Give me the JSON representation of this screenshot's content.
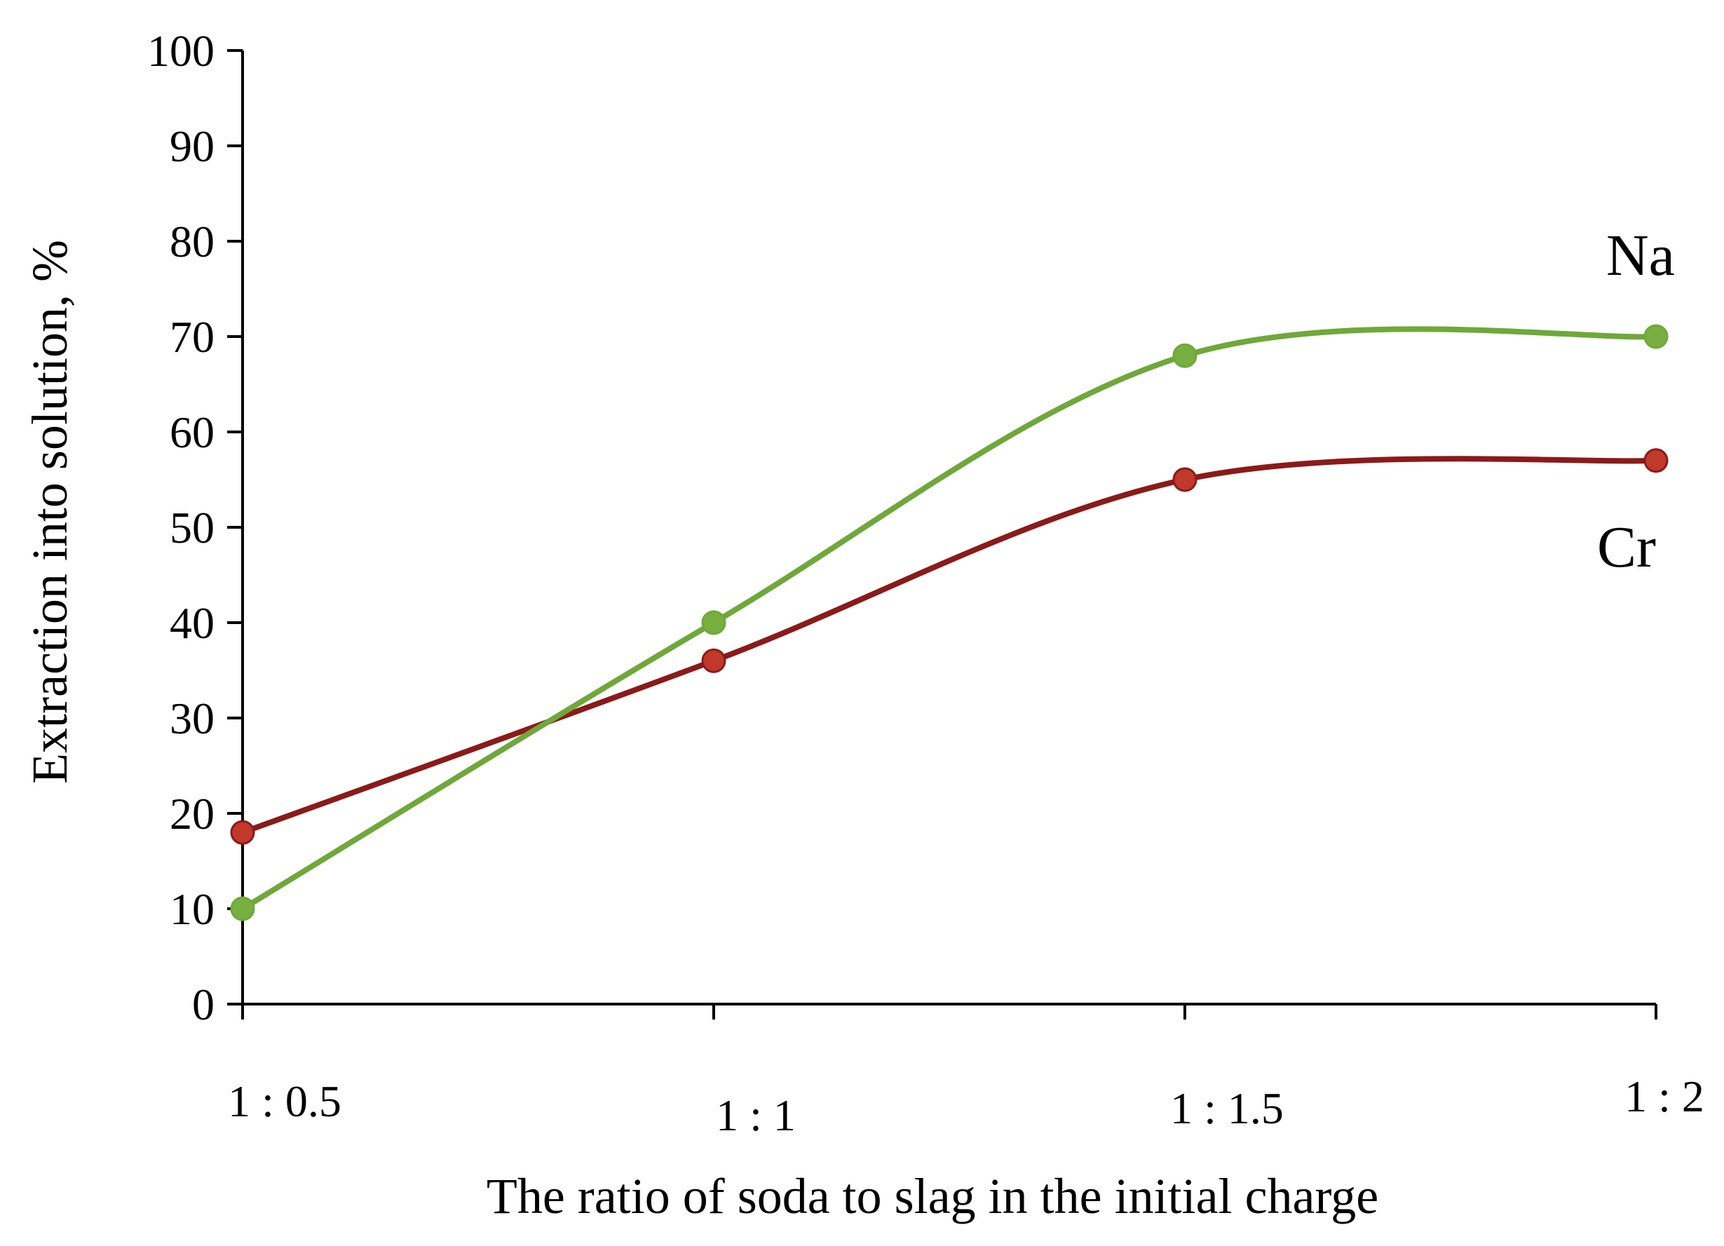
{
  "chart_data": {
    "type": "line",
    "title": "",
    "xlabel": "The ratio of soda to slag in the initial charge",
    "ylabel": "Extraction into solution, %",
    "categories": [
      "1 : 0.5",
      "1 : 1",
      "1 : 1.5",
      "1 : 2"
    ],
    "ylim": [
      0,
      100
    ],
    "yticks": [
      0,
      10,
      20,
      30,
      40,
      50,
      60,
      70,
      80,
      90,
      100
    ],
    "grid": false,
    "series": [
      {
        "name": "Na",
        "values": [
          10,
          40,
          68,
          70
        ],
        "color": "#6FA83A",
        "marker_color": "#77B041"
      },
      {
        "name": "Cr",
        "values": [
          18,
          36,
          55,
          57
        ],
        "color": "#8B1A1A",
        "marker_color": "#C0392B"
      }
    ]
  }
}
